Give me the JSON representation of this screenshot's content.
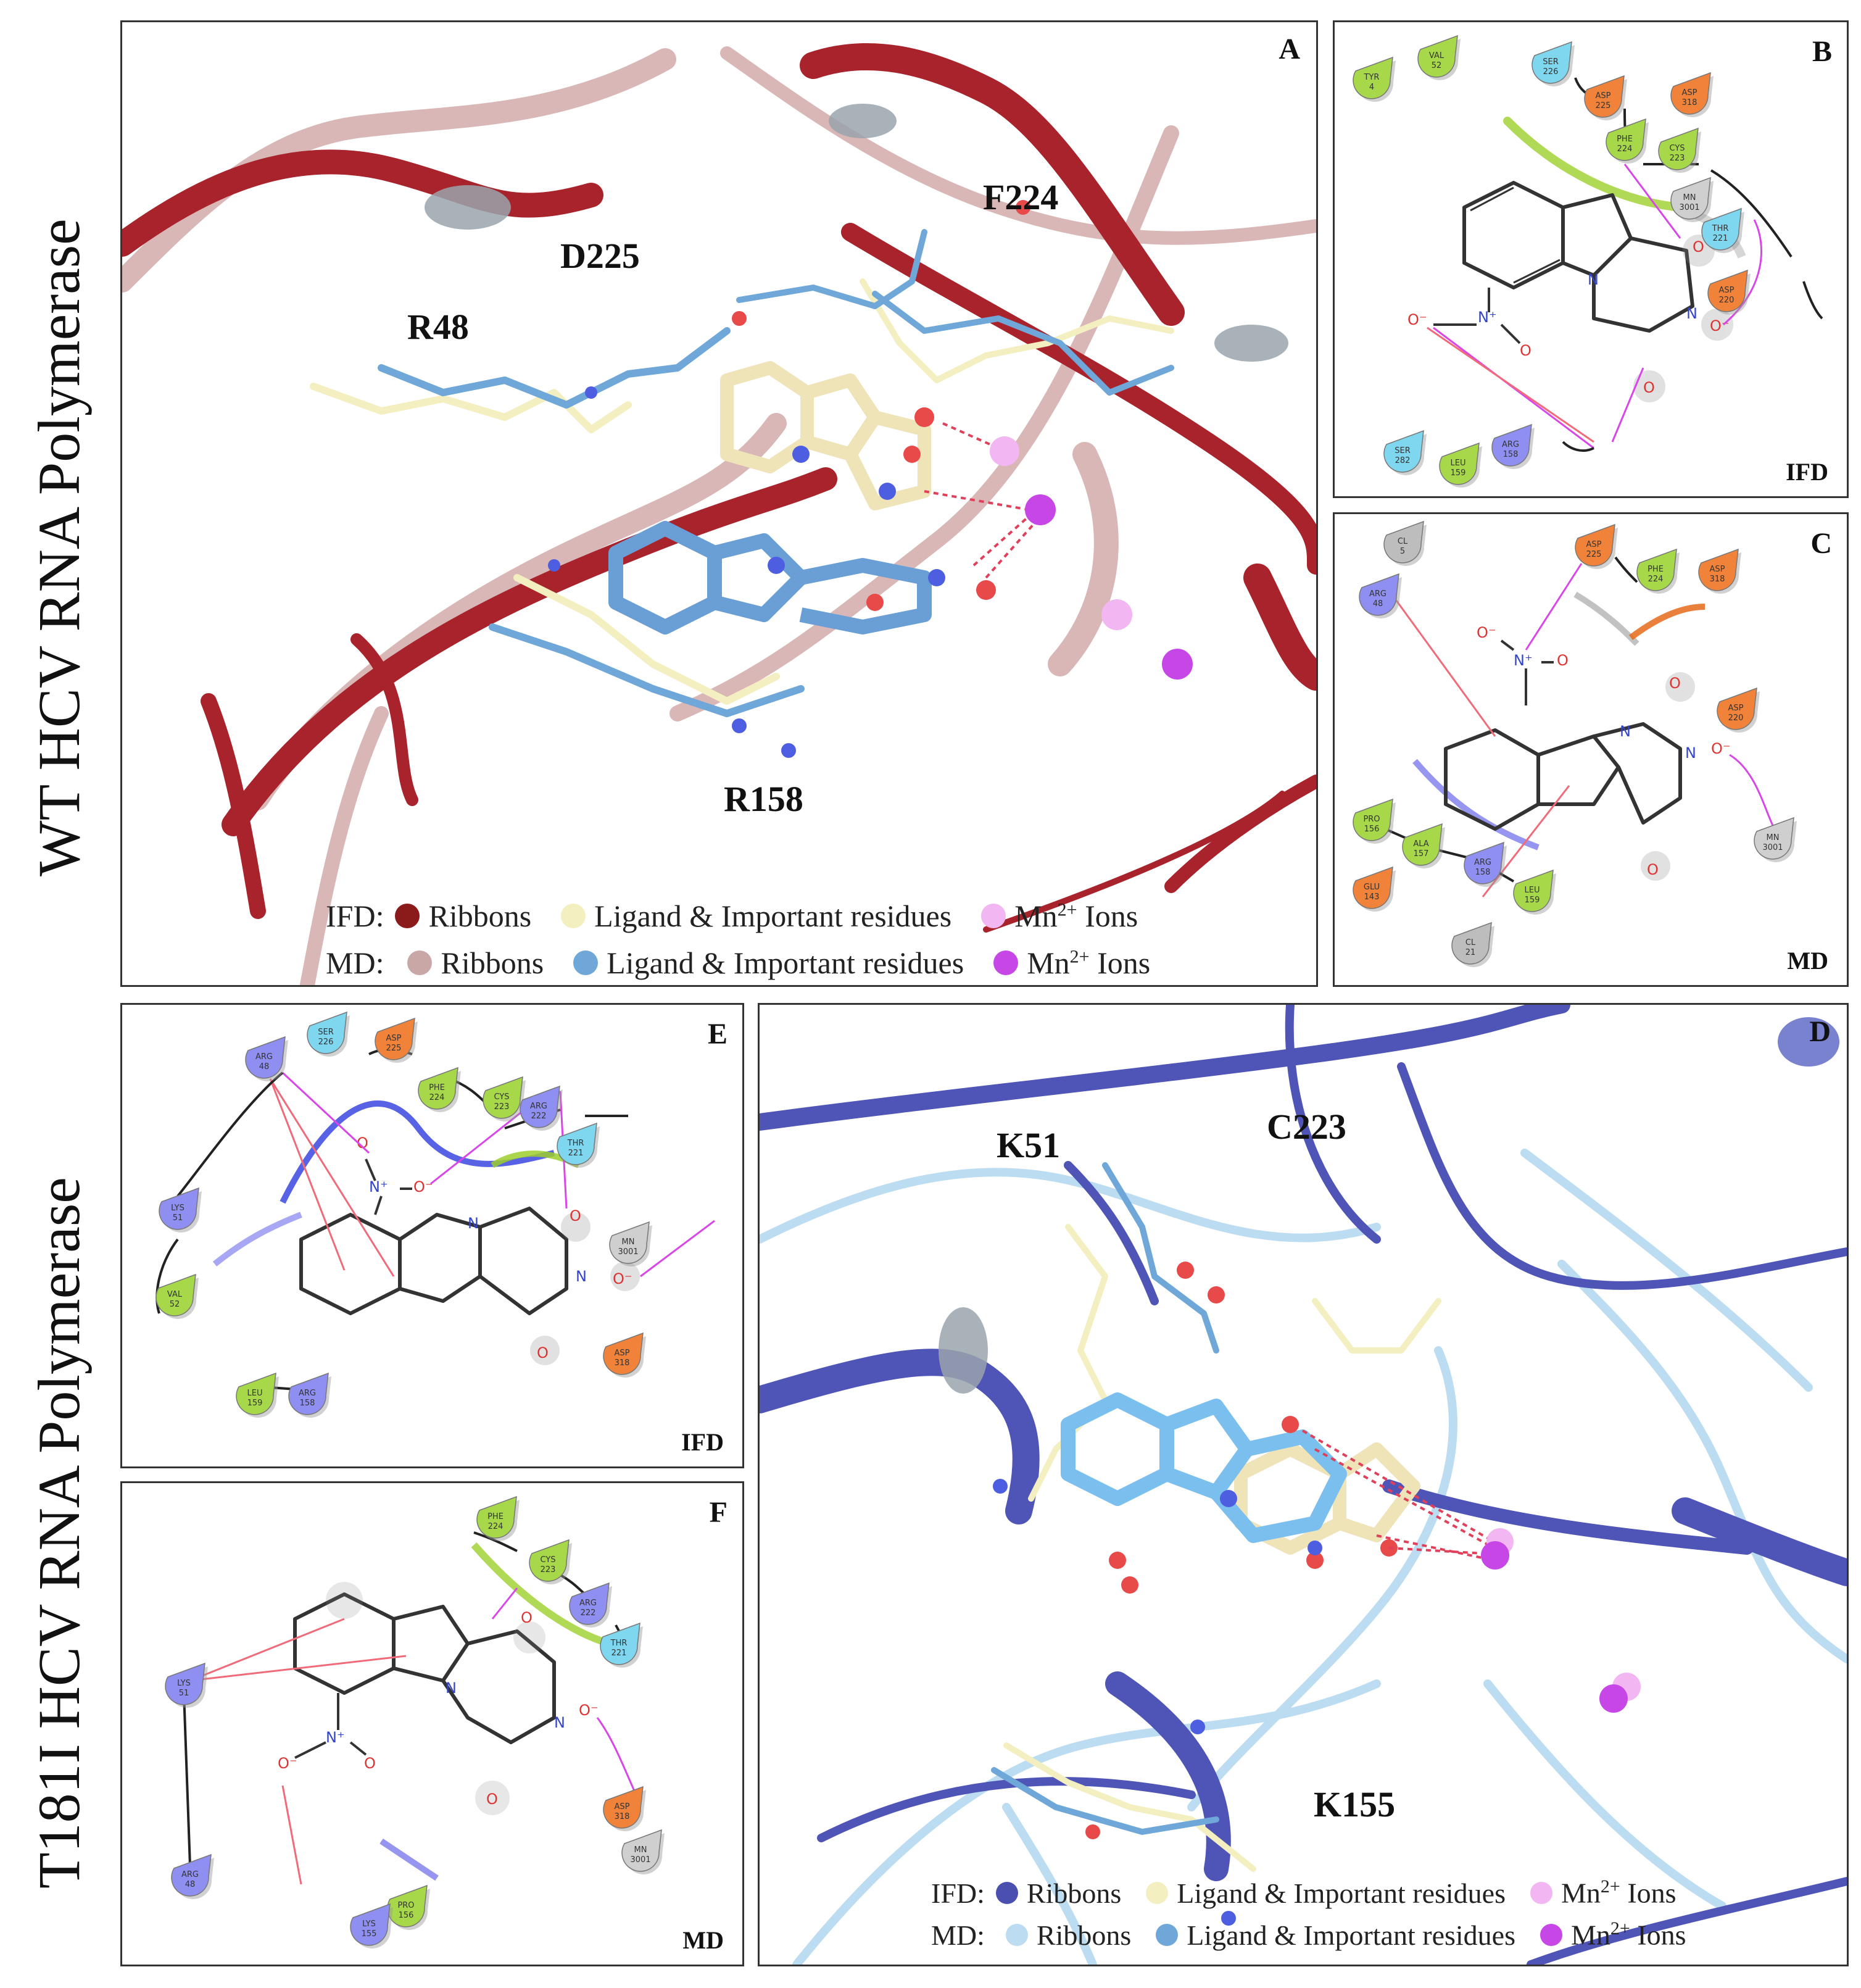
{
  "side_titles": {
    "top": "WT HCV RNA Polymerase",
    "bottom": "T181I HCV RNA Polymerase"
  },
  "colors": {
    "wt_ifd_ribbon": "#8b1a1a",
    "wt_md_ribbon": "#c9a7a7",
    "ifd_ligand": "#f3efc0",
    "md_ligand": "#6fa7d8",
    "mn_ifd": "#f2b6f2",
    "mn_md": "#c647e6",
    "mut_ifd_ribbon": "#4b4fb0",
    "mut_md_ribbon": "#bcdcf2"
  },
  "panel_A": {
    "letter": "A",
    "residues": [
      "R48",
      "D225",
      "F224",
      "R158"
    ],
    "legend": {
      "ifd_prefix": "IFD:",
      "md_prefix": "MD:",
      "ribbons": "Ribbons",
      "ligand": "Ligand & Important residues",
      "ions": "Mn",
      "ions_sup": "2+",
      "ions_suffix": " Ions"
    }
  },
  "panel_B": {
    "letter": "B",
    "method": "IFD",
    "residues": [
      {
        "name": "TYR",
        "num": "4"
      },
      {
        "name": "VAL",
        "num": "52"
      },
      {
        "name": "SER",
        "num": "226"
      },
      {
        "name": "ASP",
        "num": "225"
      },
      {
        "name": "ASP",
        "num": "318"
      },
      {
        "name": "PHE",
        "num": "224"
      },
      {
        "name": "CYS",
        "num": "223"
      },
      {
        "name": "MN",
        "num": "3001"
      },
      {
        "name": "THR",
        "num": "221"
      },
      {
        "name": "ASP",
        "num": "220"
      },
      {
        "name": "SER",
        "num": "282"
      },
      {
        "name": "LEU",
        "num": "159"
      },
      {
        "name": "ARG",
        "num": "158"
      }
    ]
  },
  "panel_C": {
    "letter": "C",
    "method": "MD",
    "residues": [
      {
        "name": "CL",
        "num": "5"
      },
      {
        "name": "ASP",
        "num": "225"
      },
      {
        "name": "PHE",
        "num": "224"
      },
      {
        "name": "ASP",
        "num": "318"
      },
      {
        "name": "ARG",
        "num": "48"
      },
      {
        "name": "ASP",
        "num": "220"
      },
      {
        "name": "PRO",
        "num": "156"
      },
      {
        "name": "ALA",
        "num": "157"
      },
      {
        "name": "GLU",
        "num": "143"
      },
      {
        "name": "ARG",
        "num": "158"
      },
      {
        "name": "LEU",
        "num": "159"
      },
      {
        "name": "MN",
        "num": "3001"
      },
      {
        "name": "CL",
        "num": "21"
      }
    ]
  },
  "panel_D": {
    "letter": "D",
    "residues": [
      "K51",
      "C223",
      "K155"
    ],
    "legend": {
      "ifd_prefix": "IFD:",
      "md_prefix": "MD:",
      "ribbons": "Ribbons",
      "ligand": "Ligand & Important residues",
      "ions": "Mn",
      "ions_sup": "2+",
      "ions_suffix": " Ions"
    }
  },
  "panel_E": {
    "letter": "E",
    "method": "IFD",
    "residues": [
      {
        "name": "SER",
        "num": "226"
      },
      {
        "name": "ASP",
        "num": "225"
      },
      {
        "name": "ARG",
        "num": "48"
      },
      {
        "name": "PHE",
        "num": "224"
      },
      {
        "name": "CYS",
        "num": "223"
      },
      {
        "name": "ARG",
        "num": "222"
      },
      {
        "name": "THR",
        "num": "221"
      },
      {
        "name": "LYS",
        "num": "51"
      },
      {
        "name": "MN",
        "num": "3001"
      },
      {
        "name": "VAL",
        "num": "52"
      },
      {
        "name": "ASP",
        "num": "318"
      },
      {
        "name": "LEU",
        "num": "159"
      },
      {
        "name": "ARG",
        "num": "158"
      }
    ]
  },
  "panel_F": {
    "letter": "F",
    "method": "MD",
    "residues": [
      {
        "name": "PHE",
        "num": "224"
      },
      {
        "name": "CYS",
        "num": "223"
      },
      {
        "name": "ARG",
        "num": "222"
      },
      {
        "name": "THR",
        "num": "221"
      },
      {
        "name": "LYS",
        "num": "51"
      },
      {
        "name": "ASP",
        "num": "318"
      },
      {
        "name": "MN",
        "num": "3001"
      },
      {
        "name": "ARG",
        "num": "48"
      },
      {
        "name": "PRO",
        "num": "156"
      },
      {
        "name": "LYS",
        "num": "155"
      }
    ]
  },
  "atoms": {
    "n_plus": "N⁺",
    "o_minus": "O⁻",
    "o": "O",
    "n": "N"
  }
}
